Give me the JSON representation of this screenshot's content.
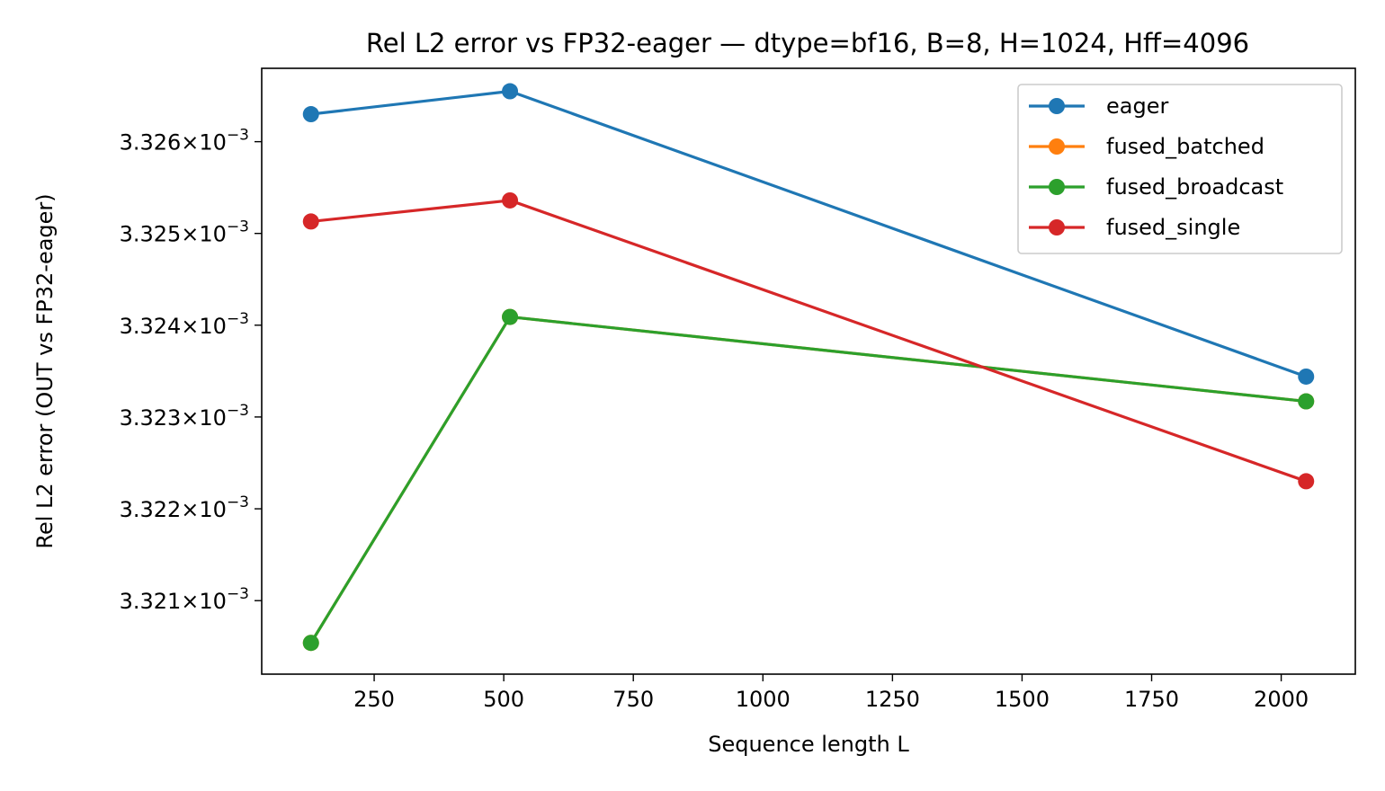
{
  "chart_data": {
    "type": "line",
    "title": "Rel L2 error vs FP32-eager — dtype=bf16, B=8, H=1024, Hff=4096",
    "xlabel": "Sequence length L",
    "ylabel": "Rel L2 error (OUT vs FP32-eager)",
    "x": [
      128,
      512,
      2048
    ],
    "xlim": [
      33,
      2143
    ],
    "ylim": [
      0.0033202,
      0.0033268
    ],
    "y_scale": "log",
    "x_ticks": [
      {
        "value": 250,
        "label": "250"
      },
      {
        "value": 500,
        "label": "500"
      },
      {
        "value": 750,
        "label": "750"
      },
      {
        "value": 1000,
        "label": "1000"
      },
      {
        "value": 1250,
        "label": "1250"
      },
      {
        "value": 1500,
        "label": "1500"
      },
      {
        "value": 1750,
        "label": "1750"
      },
      {
        "value": 2000,
        "label": "2000"
      }
    ],
    "y_ticks": [
      {
        "value": 0.003321,
        "mantissa": "3.321",
        "times": "×",
        "base": "10",
        "exp": "−3"
      },
      {
        "value": 0.003322,
        "mantissa": "3.322",
        "times": "×",
        "base": "10",
        "exp": "−3"
      },
      {
        "value": 0.003323,
        "mantissa": "3.323",
        "times": "×",
        "base": "10",
        "exp": "−3"
      },
      {
        "value": 0.003324,
        "mantissa": "3.324",
        "times": "×",
        "base": "10",
        "exp": "−3"
      },
      {
        "value": 0.003325,
        "mantissa": "3.325",
        "times": "×",
        "base": "10",
        "exp": "−3"
      },
      {
        "value": 0.003326,
        "mantissa": "3.326",
        "times": "×",
        "base": "10",
        "exp": "−3"
      }
    ],
    "series": [
      {
        "name": "eager",
        "color": "#1f77b4",
        "values": [
          0.0033263,
          0.00332655,
          0.00332344
        ]
      },
      {
        "name": "fused_batched",
        "color": "#ff7f0e",
        "values": [
          0.00332054,
          0.00332409,
          0.00332317
        ]
      },
      {
        "name": "fused_broadcast",
        "color": "#2ca02c",
        "values": [
          0.00332054,
          0.00332409,
          0.00332317
        ]
      },
      {
        "name": "fused_single",
        "color": "#d62728",
        "values": [
          0.00332513,
          0.00332536,
          0.0033223
        ]
      }
    ],
    "legend": {
      "position": "top-right"
    },
    "grid": false
  }
}
